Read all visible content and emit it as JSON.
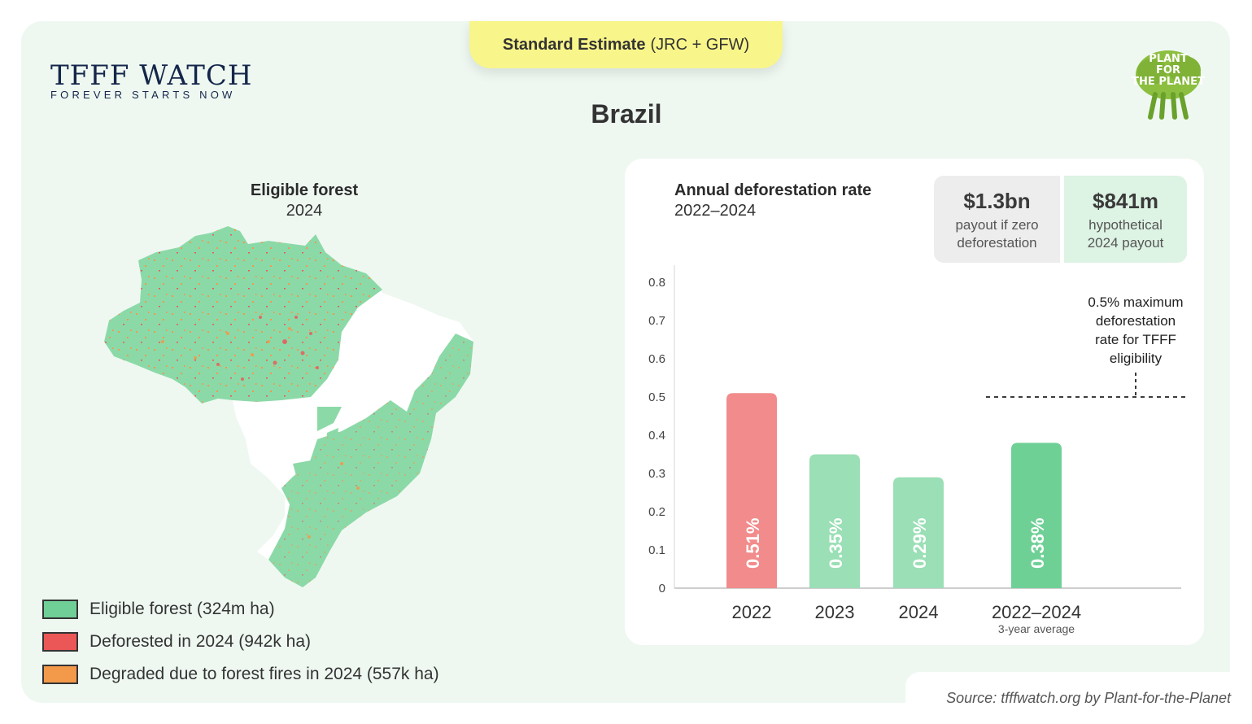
{
  "estimate": {
    "label_bold": "Standard Estimate",
    "label_rest": "(JRC + GFW)"
  },
  "brand": {
    "name": "TFFF WATCH",
    "tagline": "FOREVER STARTS NOW"
  },
  "partner_logo": {
    "icon": "plant-for-the-planet-logo",
    "text_lines": [
      "PLANT",
      "FOR",
      "THE PLANET"
    ]
  },
  "country": "Brazil",
  "map": {
    "title": "Eligible forest",
    "year": "2024",
    "legend": [
      {
        "label": "Eligible forest (324m ha)",
        "color": "#6fcf97"
      },
      {
        "label": "Deforested in 2024 (942k ha)",
        "color": "#eb5757"
      },
      {
        "label": "Degraded due to forest fires in 2024 (557k ha)",
        "color": "#f2994a"
      }
    ]
  },
  "stats": [
    {
      "value": "$1.3bn",
      "desc": "payout if zero deforestation"
    },
    {
      "value": "$841m",
      "desc": "hypothetical 2024 payout"
    }
  ],
  "source": "Source: tfffwatch.org by Plant-for-the-Planet",
  "chart_data": {
    "type": "bar",
    "title": "Annual deforestation rate",
    "subtitle": "2022–2024",
    "categories": [
      "2022",
      "2023",
      "2024",
      "2022–2024"
    ],
    "category_sublabels": [
      "",
      "",
      "",
      "3-year average"
    ],
    "values": [
      0.51,
      0.35,
      0.29,
      0.38
    ],
    "value_labels": [
      "0.51%",
      "0.35%",
      "0.29%",
      "0.38%"
    ],
    "bar_colors": [
      "#f28b8b",
      "#9adfb5",
      "#9adfb5",
      "#6fd096"
    ],
    "ylim": [
      0,
      0.8
    ],
    "yticks": [
      "0",
      "0.1",
      "0.2",
      "0.3",
      "0.4",
      "0.5",
      "0.6",
      "0.7",
      "0.8"
    ],
    "threshold": {
      "value": 0.5,
      "label": "0.5% maximum deforestation rate for TFFF eligibility"
    },
    "grid": false
  }
}
